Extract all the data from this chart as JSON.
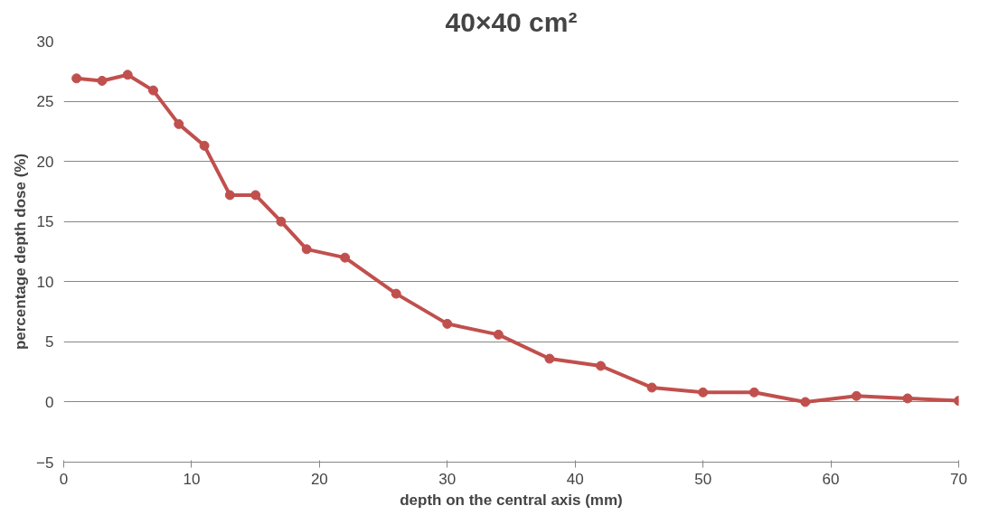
{
  "chart_data": {
    "type": "line",
    "title": "40×40 cm²",
    "xlabel": "depth on the central axis (mm)",
    "ylabel": "percentage depth dose (%)",
    "x": [
      1,
      3,
      5,
      7,
      9,
      11,
      13,
      15,
      17,
      19,
      22,
      26,
      30,
      34,
      38,
      42,
      46,
      50,
      54,
      58,
      62,
      66,
      70
    ],
    "series": [
      {
        "color": "#c0504d",
        "values": [
          26.9,
          26.7,
          27.2,
          25.9,
          23.1,
          21.3,
          17.2,
          17.2,
          15.0,
          12.7,
          12.0,
          9.0,
          6.5,
          5.6,
          3.6,
          3.0,
          1.2,
          0.8,
          0.8,
          0.0,
          0.5,
          0.3,
          0.1
        ]
      }
    ],
    "xlim": [
      0,
      70
    ],
    "xticks": [
      0,
      10,
      20,
      30,
      40,
      50,
      60,
      70
    ],
    "ylim": [
      -5,
      30
    ],
    "yticks": [
      -5,
      0,
      5,
      10,
      15,
      20,
      25,
      30
    ],
    "grid": "y",
    "marker": "circle",
    "line_style": "solid"
  }
}
